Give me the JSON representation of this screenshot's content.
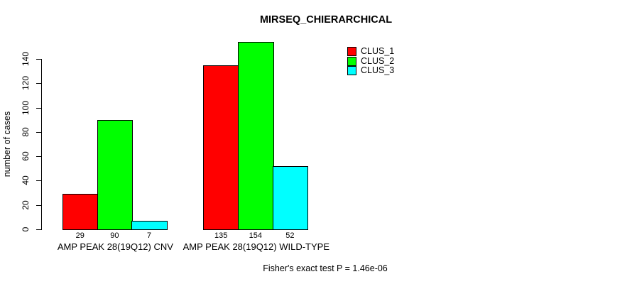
{
  "chart_data": {
    "type": "bar",
    "title": "MIRSEQ_CHIERARCHICAL",
    "ylabel": "number of cases",
    "xlabel": "",
    "categories": [
      "AMP PEAK 28(19Q12) CNV",
      "AMP PEAK 28(19Q12) WILD-TYPE"
    ],
    "series": [
      {
        "name": "CLUS_1",
        "color": "#ff0000",
        "values": [
          29,
          135
        ]
      },
      {
        "name": "CLUS_2",
        "color": "#00ff00",
        "values": [
          90,
          154
        ]
      },
      {
        "name": "CLUS_3",
        "color": "#00ffff",
        "values": [
          7,
          52
        ]
      }
    ],
    "bar_value_labels": [
      [
        29,
        90,
        7
      ],
      [
        135,
        154,
        52
      ]
    ],
    "yticks": [
      0,
      20,
      40,
      60,
      80,
      100,
      120,
      140
    ],
    "ylim": [
      0,
      140
    ],
    "grid": false,
    "legend_position": "top-right",
    "legend": [
      "CLUS_1",
      "CLUS_2",
      "CLUS_3"
    ],
    "annotation": "Fisher's exact test P = 1.46e-06"
  },
  "colors": {
    "bar_border": "#000000",
    "axis": "#000000",
    "text": "#000000",
    "background": "#ffffff"
  }
}
